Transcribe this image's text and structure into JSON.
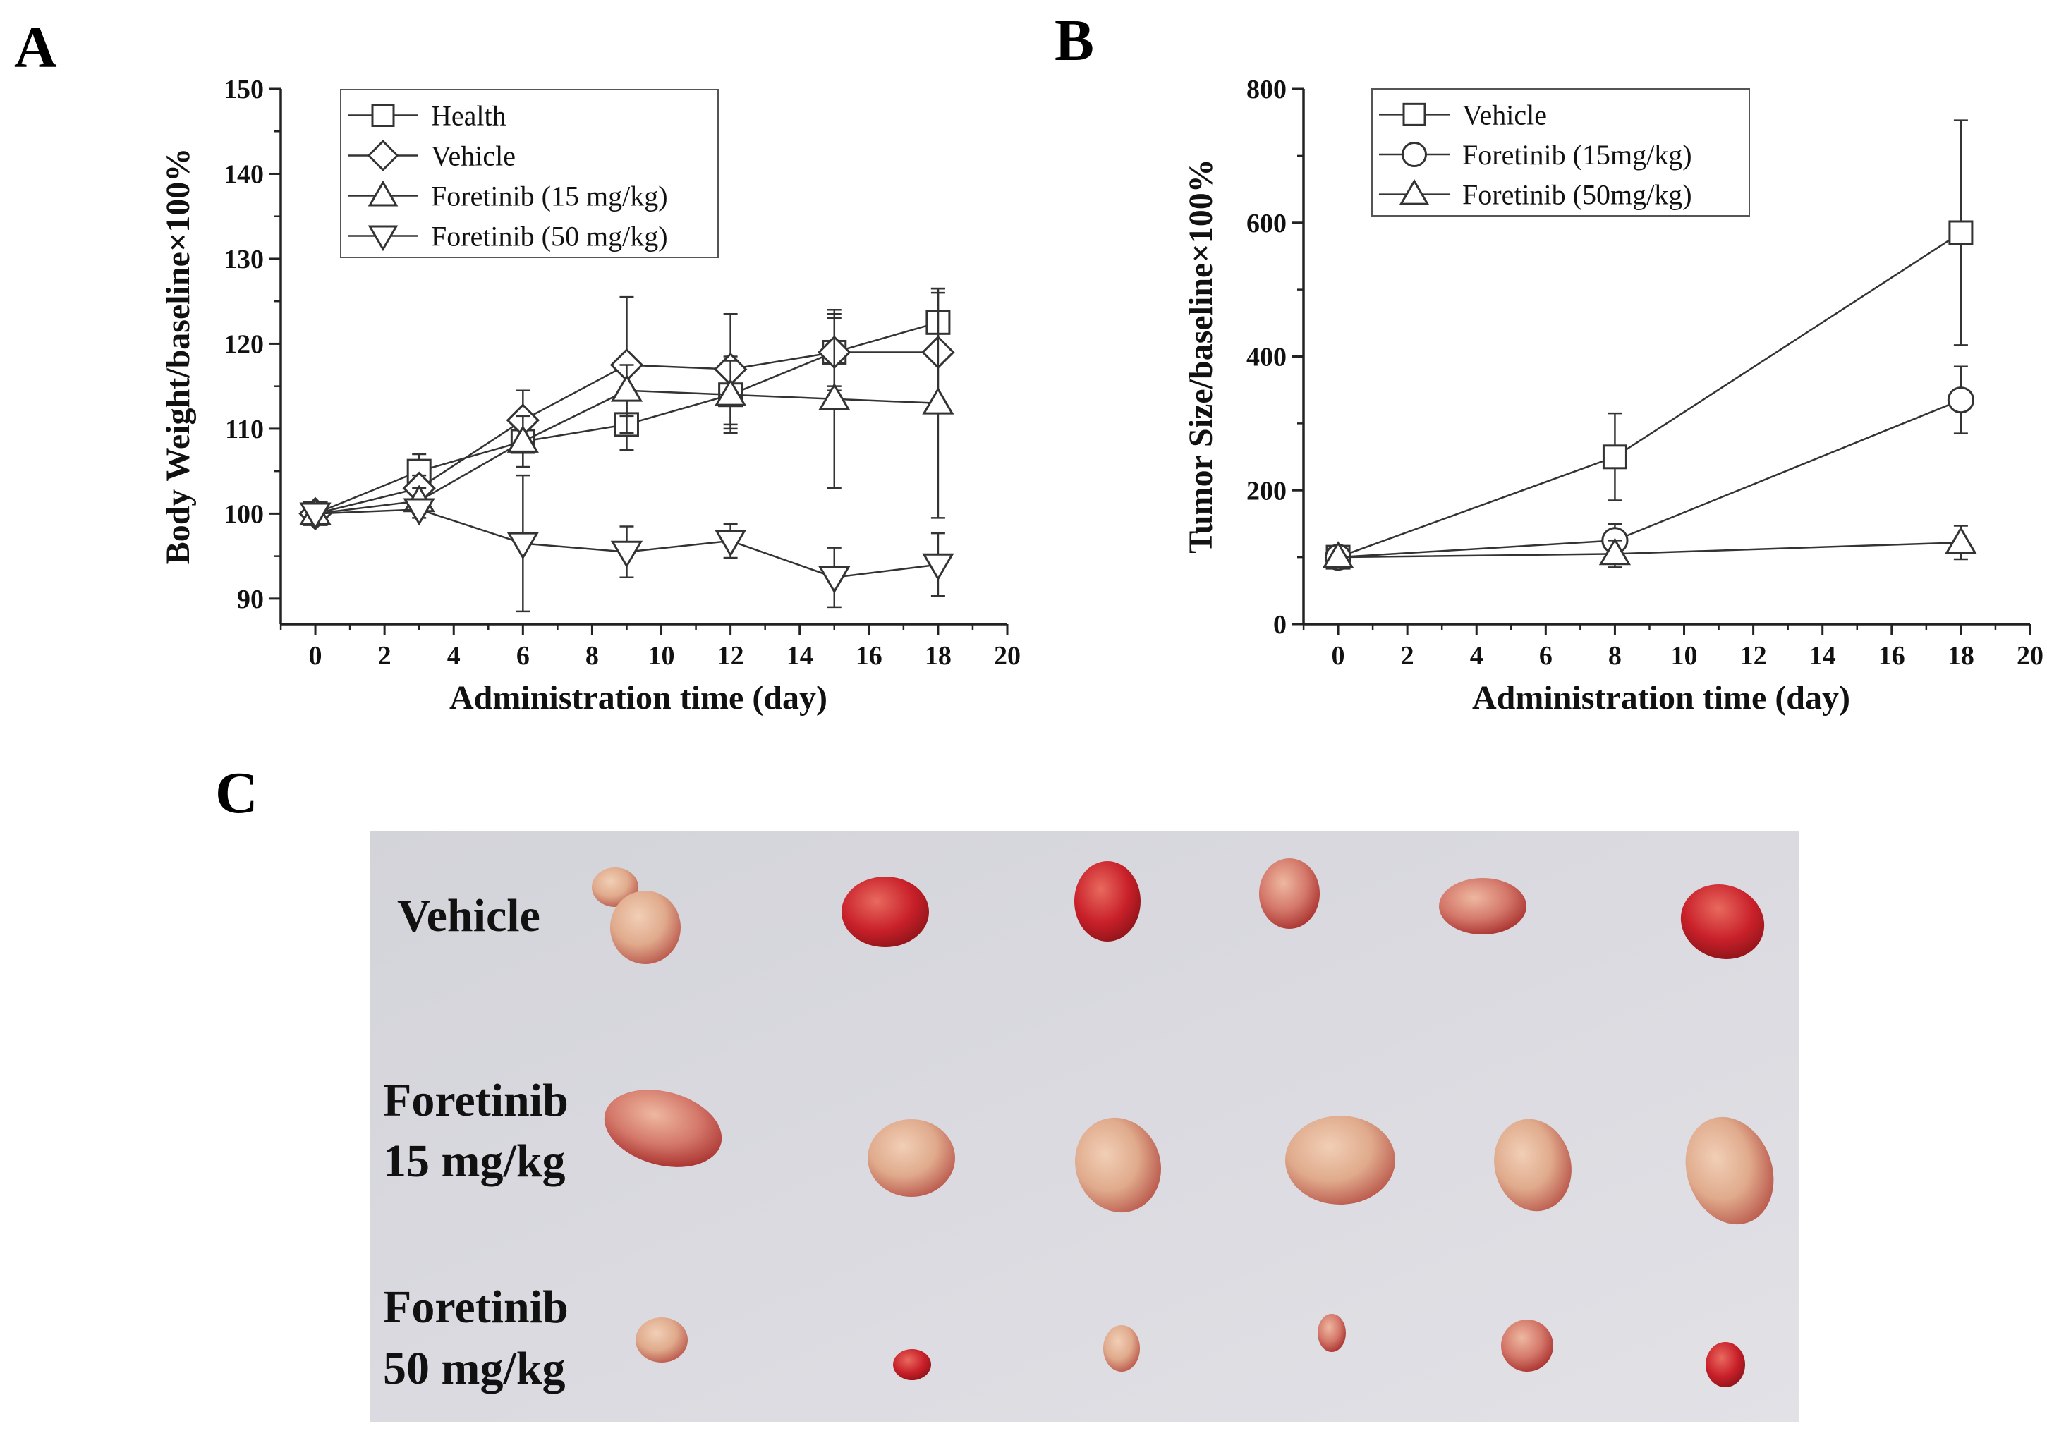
{
  "panels": {
    "a": "A",
    "b": "B",
    "c": "C"
  },
  "chart_data": [
    {
      "type": "line",
      "panel": "A",
      "xlabel": "Administration time (day)",
      "ylabel": "Body Weight/baseline×100%",
      "xlim": [
        -1,
        20
      ],
      "ylim": [
        87,
        150
      ],
      "xticks": [
        0,
        2,
        4,
        6,
        8,
        10,
        12,
        14,
        16,
        18,
        20
      ],
      "yticks": [
        90,
        100,
        110,
        120,
        130,
        140,
        150
      ],
      "legend_position": "top-left",
      "series": [
        {
          "name": "Health",
          "marker": "square",
          "x": [
            0,
            3,
            6,
            9,
            12,
            15,
            18
          ],
          "values": [
            100,
            105,
            108.5,
            110.5,
            114,
            119,
            122.5
          ],
          "err": [
            0.5,
            2,
            3,
            3,
            4.5,
            4,
            4
          ]
        },
        {
          "name": "Vehicle",
          "marker": "diamond",
          "x": [
            0,
            3,
            6,
            9,
            12,
            15,
            18
          ],
          "values": [
            100,
            103,
            111,
            117.5,
            117,
            119,
            119
          ],
          "err": [
            0.5,
            1.5,
            3.5,
            8,
            6.5,
            4.5,
            7
          ]
        },
        {
          "name": "Foretinib (15 mg/kg)",
          "marker": "triangle-up",
          "x": [
            0,
            3,
            6,
            9,
            12,
            15,
            18
          ],
          "values": [
            100,
            101.5,
            108.5,
            114.5,
            114,
            113.5,
            113
          ],
          "err": [
            0.5,
            1.5,
            3,
            3,
            4,
            10.5,
            13.5
          ]
        },
        {
          "name": "Foretinib (50 mg/kg)",
          "marker": "triangle-down",
          "x": [
            0,
            3,
            6,
            9,
            12,
            15,
            18
          ],
          "values": [
            100,
            100.5,
            96.5,
            95.5,
            96.8,
            92.5,
            94
          ],
          "err": [
            0.5,
            1,
            8,
            3,
            2,
            3.5,
            3.7
          ]
        }
      ]
    },
    {
      "type": "line",
      "panel": "B",
      "xlabel": "Administration time (day)",
      "ylabel": "Tumor Size/baseline×100%",
      "xlim": [
        -1,
        20
      ],
      "ylim": [
        0,
        800
      ],
      "xticks": [
        0,
        2,
        4,
        6,
        8,
        10,
        12,
        14,
        16,
        18,
        20
      ],
      "yticks": [
        0,
        200,
        400,
        600,
        800
      ],
      "legend_position": "top-left",
      "series": [
        {
          "name": "Vehicle",
          "marker": "square",
          "x": [
            0,
            8,
            18
          ],
          "values": [
            100,
            250,
            585
          ],
          "err": [
            5,
            65,
            168
          ]
        },
        {
          "name": "Foretinib (15mg/kg)",
          "marker": "circle",
          "x": [
            0,
            8,
            18
          ],
          "values": [
            100,
            125,
            335
          ],
          "err": [
            5,
            25,
            50
          ]
        },
        {
          "name": "Foretinib (50mg/kg)",
          "marker": "triangle-up",
          "x": [
            0,
            8,
            18
          ],
          "values": [
            100,
            105,
            122
          ],
          "err": [
            5,
            20,
            25
          ]
        }
      ]
    }
  ],
  "photo": {
    "rows": [
      {
        "label_lines": [
          "Vehicle"
        ]
      },
      {
        "label_lines": [
          "Foretinib",
          "15 mg/kg"
        ]
      },
      {
        "label_lines": [
          "Foretinib",
          "50 mg/kg"
        ]
      }
    ]
  }
}
